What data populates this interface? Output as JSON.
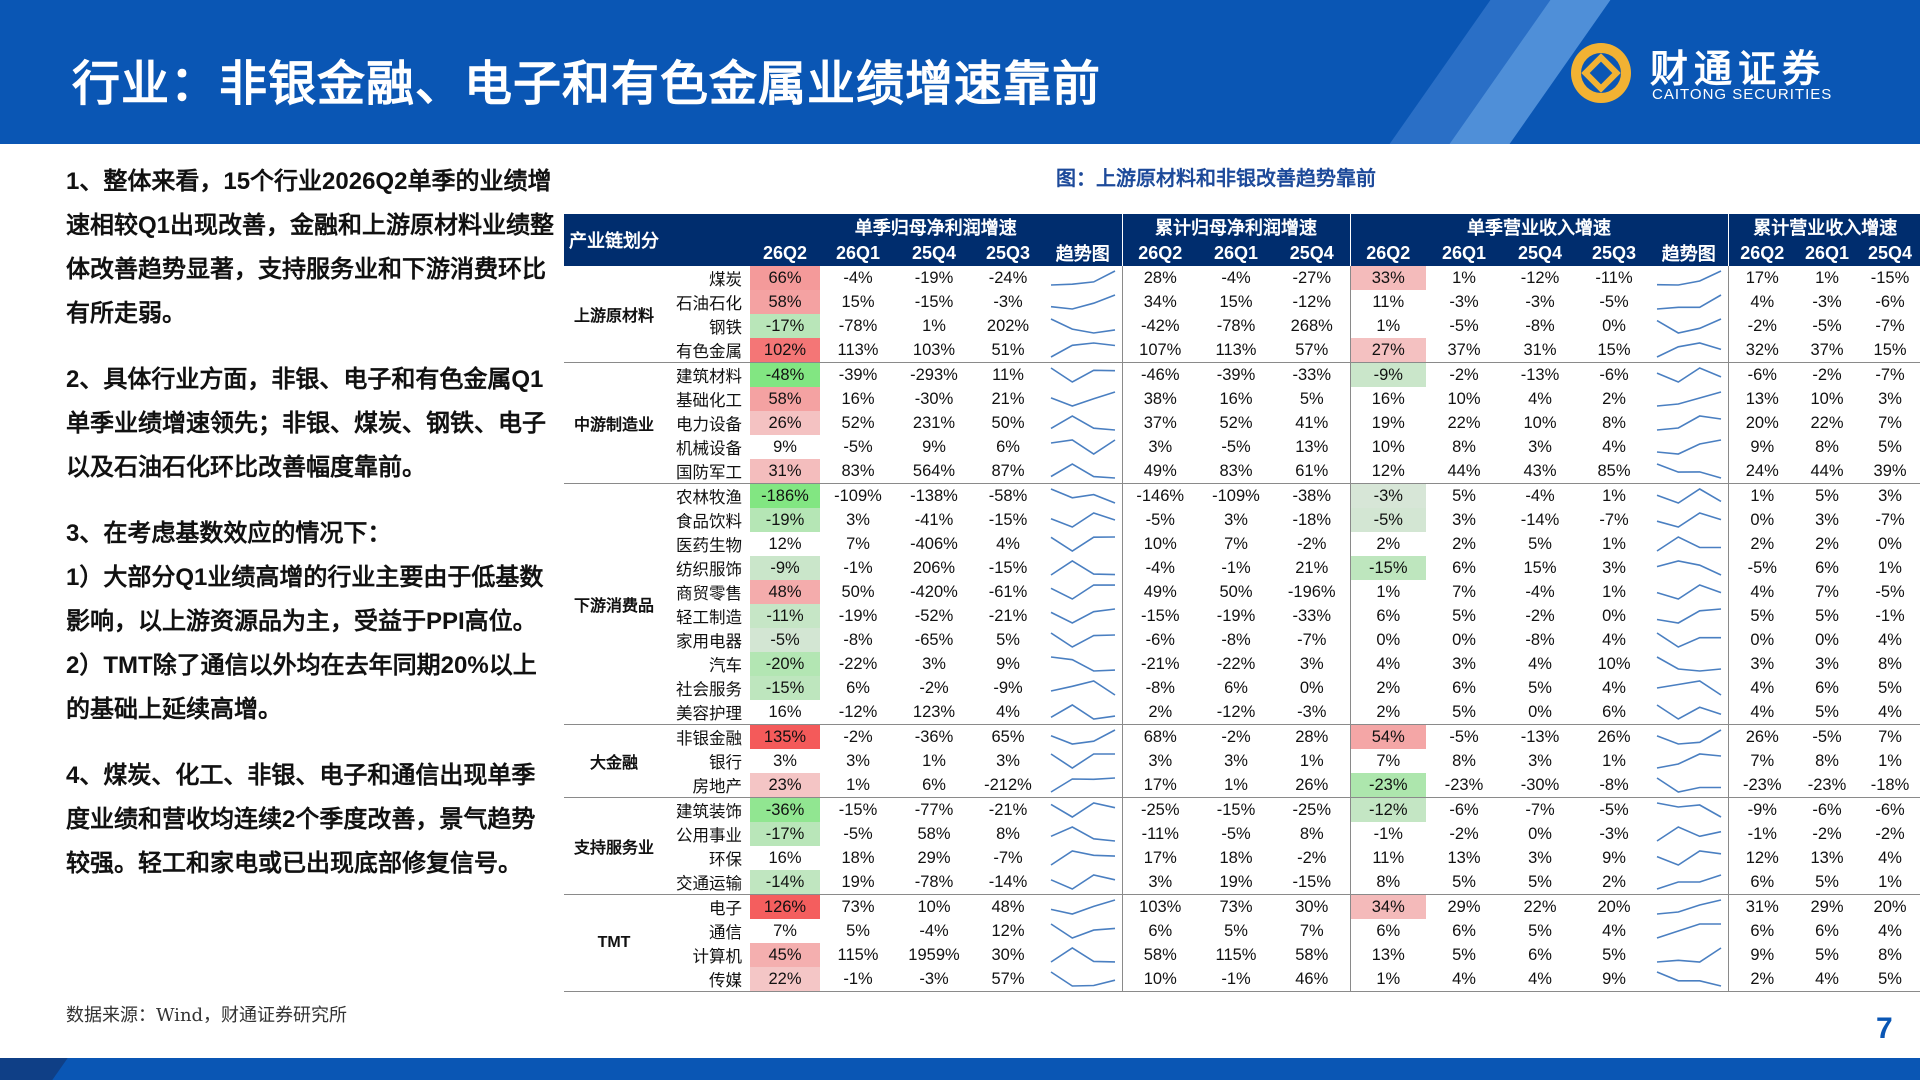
{
  "header": {
    "title": "行业：非银金融、电子和有色金属业绩增速靠前"
  },
  "brand": {
    "name_cn": "财通证券",
    "name_en": "CAITONG SECURITIES"
  },
  "colors": {
    "primary": "#0a56b4",
    "table_header": "#002d6e",
    "red_highlight": "#f4a3a3",
    "green_highlight": "#a9dca9"
  },
  "left_text": [
    "1、整体来看，15个行业2026Q2单季的业绩增速相较Q1出现改善，金融和上游原材料业绩整体改善趋势显著，支持服务业和下游消费环比有所走弱。",
    "2、具体行业方面，非银、电子和有色金属Q1单季业绩增速领先；非银、煤炭、钢铁、电子以及石油石化环比改善幅度靠前。",
    "3、在考虑基数效应的情况下：",
    "1）大部分Q1业绩高增的行业主要由于低基数影响，以上游资源品为主，受益于PPI高位。",
    "2）TMT除了通信以外均在去年同期20%以上的基础上延续高增。",
    "4、煤炭、化工、非银、电子和通信出现单季度业绩和营收均连续2个季度改善，景气趋势较强。轻工和家电或已出现底部修复信号。"
  ],
  "chart_title": "图：上游原材料和非银改善趋势靠前",
  "table": {
    "chain_header": "产业链划分",
    "group_headers": [
      "单季归母净利润增速",
      "累计归母净利润增速",
      "单季营业收入增速",
      "累计营业收入增速"
    ],
    "sub_headers": {
      "q_profit": [
        "26Q2",
        "26Q1",
        "25Q4",
        "25Q3",
        "趋势图"
      ],
      "c_profit": [
        "26Q2",
        "26Q1",
        "25Q4"
      ],
      "q_rev": [
        "26Q2",
        "26Q1",
        "25Q4",
        "25Q3",
        "趋势图"
      ],
      "c_rev": [
        "26Q2",
        "26Q1",
        "25Q4"
      ]
    },
    "groups": [
      {
        "name": "上游原材料",
        "rows": [
          {
            "industry": "煤炭",
            "qp": [
              "66%",
              "-4%",
              "-19%",
              "-24%"
            ],
            "cp": [
              "28%",
              "-4%",
              "-27%"
            ],
            "qr": [
              "33%",
              "1%",
              "-12%",
              "-11%"
            ],
            "cr": [
              "17%",
              "1%",
              "-15%"
            ]
          },
          {
            "industry": "石油石化",
            "qp": [
              "58%",
              "15%",
              "-15%",
              "-3%"
            ],
            "cp": [
              "34%",
              "15%",
              "-12%"
            ],
            "qr": [
              "11%",
              "-3%",
              "-3%",
              "-5%"
            ],
            "cr": [
              "4%",
              "-3%",
              "-6%"
            ]
          },
          {
            "industry": "钢铁",
            "qp": [
              "-17%",
              "-78%",
              "1%",
              "202%"
            ],
            "cp": [
              "-42%",
              "-78%",
              "268%"
            ],
            "qr": [
              "1%",
              "-5%",
              "-8%",
              "0%"
            ],
            "cr": [
              "-2%",
              "-5%",
              "-7%"
            ]
          },
          {
            "industry": "有色金属",
            "qp": [
              "102%",
              "113%",
              "103%",
              "51%"
            ],
            "cp": [
              "107%",
              "113%",
              "57%"
            ],
            "qr": [
              "27%",
              "37%",
              "31%",
              "15%"
            ],
            "cr": [
              "32%",
              "37%",
              "15%"
            ]
          }
        ]
      },
      {
        "name": "中游制造业",
        "rows": [
          {
            "industry": "建筑材料",
            "qp": [
              "-48%",
              "-39%",
              "-293%",
              "11%"
            ],
            "cp": [
              "-46%",
              "-39%",
              "-33%"
            ],
            "qr": [
              "-9%",
              "-2%",
              "-13%",
              "-6%"
            ],
            "cr": [
              "-6%",
              "-2%",
              "-7%"
            ]
          },
          {
            "industry": "基础化工",
            "qp": [
              "58%",
              "16%",
              "-30%",
              "21%"
            ],
            "cp": [
              "38%",
              "16%",
              "5%"
            ],
            "qr": [
              "16%",
              "10%",
              "4%",
              "2%"
            ],
            "cr": [
              "13%",
              "10%",
              "3%"
            ]
          },
          {
            "industry": "电力设备",
            "qp": [
              "26%",
              "52%",
              "231%",
              "50%"
            ],
            "cp": [
              "37%",
              "52%",
              "41%"
            ],
            "qr": [
              "19%",
              "22%",
              "10%",
              "8%"
            ],
            "cr": [
              "20%",
              "22%",
              "7%"
            ]
          },
          {
            "industry": "机械设备",
            "qp": [
              "9%",
              "-5%",
              "9%",
              "6%"
            ],
            "cp": [
              "3%",
              "-5%",
              "13%"
            ],
            "qr": [
              "10%",
              "8%",
              "3%",
              "4%"
            ],
            "cr": [
              "9%",
              "8%",
              "5%"
            ]
          },
          {
            "industry": "国防军工",
            "qp": [
              "31%",
              "83%",
              "564%",
              "87%"
            ],
            "cp": [
              "49%",
              "83%",
              "61%"
            ],
            "qr": [
              "12%",
              "44%",
              "43%",
              "85%"
            ],
            "cr": [
              "24%",
              "44%",
              "39%"
            ]
          }
        ]
      },
      {
        "name": "下游消费品",
        "rows": [
          {
            "industry": "农林牧渔",
            "qp": [
              "-186%",
              "-109%",
              "-138%",
              "-58%"
            ],
            "cp": [
              "-146%",
              "-109%",
              "-38%"
            ],
            "qr": [
              "-3%",
              "5%",
              "-4%",
              "1%"
            ],
            "cr": [
              "1%",
              "5%",
              "3%"
            ]
          },
          {
            "industry": "食品饮料",
            "qp": [
              "-19%",
              "3%",
              "-41%",
              "-15%"
            ],
            "cp": [
              "-5%",
              "3%",
              "-18%"
            ],
            "qr": [
              "-5%",
              "3%",
              "-14%",
              "-7%"
            ],
            "cr": [
              "0%",
              "3%",
              "-7%"
            ]
          },
          {
            "industry": "医药生物",
            "qp": [
              "12%",
              "7%",
              "-406%",
              "4%"
            ],
            "cp": [
              "10%",
              "7%",
              "-2%"
            ],
            "qr": [
              "2%",
              "2%",
              "5%",
              "1%"
            ],
            "cr": [
              "2%",
              "2%",
              "0%"
            ]
          },
          {
            "industry": "纺织服饰",
            "qp": [
              "-9%",
              "-1%",
              "206%",
              "-15%"
            ],
            "cp": [
              "-4%",
              "-1%",
              "21%"
            ],
            "qr": [
              "-15%",
              "6%",
              "15%",
              "3%"
            ],
            "cr": [
              "-5%",
              "6%",
              "1%"
            ]
          },
          {
            "industry": "商贸零售",
            "qp": [
              "48%",
              "50%",
              "-420%",
              "-61%"
            ],
            "cp": [
              "49%",
              "50%",
              "-196%"
            ],
            "qr": [
              "1%",
              "7%",
              "-4%",
              "1%"
            ],
            "cr": [
              "4%",
              "7%",
              "-5%"
            ]
          },
          {
            "industry": "轻工制造",
            "qp": [
              "-11%",
              "-19%",
              "-52%",
              "-21%"
            ],
            "cp": [
              "-15%",
              "-19%",
              "-33%"
            ],
            "qr": [
              "6%",
              "5%",
              "-2%",
              "0%"
            ],
            "cr": [
              "5%",
              "5%",
              "-1%"
            ]
          },
          {
            "industry": "家用电器",
            "qp": [
              "-5%",
              "-8%",
              "-65%",
              "5%"
            ],
            "cp": [
              "-6%",
              "-8%",
              "-7%"
            ],
            "qr": [
              "0%",
              "0%",
              "-8%",
              "4%"
            ],
            "cr": [
              "0%",
              "0%",
              "4%"
            ]
          },
          {
            "industry": "汽车",
            "qp": [
              "-20%",
              "-22%",
              "3%",
              "9%"
            ],
            "cp": [
              "-21%",
              "-22%",
              "3%"
            ],
            "qr": [
              "4%",
              "3%",
              "4%",
              "10%"
            ],
            "cr": [
              "3%",
              "3%",
              "8%"
            ]
          },
          {
            "industry": "社会服务",
            "qp": [
              "-15%",
              "6%",
              "-2%",
              "-9%"
            ],
            "cp": [
              "-8%",
              "6%",
              "0%"
            ],
            "qr": [
              "2%",
              "6%",
              "5%",
              "4%"
            ],
            "cr": [
              "4%",
              "6%",
              "5%"
            ]
          },
          {
            "industry": "美容护理",
            "qp": [
              "16%",
              "-12%",
              "123%",
              "4%"
            ],
            "cp": [
              "2%",
              "-12%",
              "-3%"
            ],
            "qr": [
              "2%",
              "5%",
              "0%",
              "6%"
            ],
            "cr": [
              "4%",
              "5%",
              "4%"
            ]
          }
        ]
      },
      {
        "name": "大金融",
        "rows": [
          {
            "industry": "非银金融",
            "qp": [
              "135%",
              "-2%",
              "-36%",
              "65%"
            ],
            "cp": [
              "68%",
              "-2%",
              "28%"
            ],
            "qr": [
              "54%",
              "-5%",
              "-13%",
              "26%"
            ],
            "cr": [
              "26%",
              "-5%",
              "7%"
            ]
          },
          {
            "industry": "银行",
            "qp": [
              "3%",
              "3%",
              "1%",
              "3%"
            ],
            "cp": [
              "3%",
              "3%",
              "1%"
            ],
            "qr": [
              "7%",
              "8%",
              "3%",
              "1%"
            ],
            "cr": [
              "7%",
              "8%",
              "1%"
            ]
          },
          {
            "industry": "房地产",
            "qp": [
              "23%",
              "1%",
              "6%",
              "-212%"
            ],
            "cp": [
              "17%",
              "1%",
              "26%"
            ],
            "qr": [
              "-23%",
              "-23%",
              "-30%",
              "-8%"
            ],
            "cr": [
              "-23%",
              "-23%",
              "-18%"
            ]
          }
        ]
      },
      {
        "name": "支持服务业",
        "rows": [
          {
            "industry": "建筑装饰",
            "qp": [
              "-36%",
              "-15%",
              "-77%",
              "-21%"
            ],
            "cp": [
              "-25%",
              "-15%",
              "-25%"
            ],
            "qr": [
              "-12%",
              "-6%",
              "-7%",
              "-5%"
            ],
            "cr": [
              "-9%",
              "-6%",
              "-6%"
            ]
          },
          {
            "industry": "公用事业",
            "qp": [
              "-17%",
              "-5%",
              "58%",
              "8%"
            ],
            "cp": [
              "-11%",
              "-5%",
              "8%"
            ],
            "qr": [
              "-1%",
              "-2%",
              "0%",
              "-3%"
            ],
            "cr": [
              "-1%",
              "-2%",
              "-2%"
            ]
          },
          {
            "industry": "环保",
            "qp": [
              "16%",
              "18%",
              "29%",
              "-7%"
            ],
            "cp": [
              "17%",
              "18%",
              "-2%"
            ],
            "qr": [
              "11%",
              "13%",
              "3%",
              "9%"
            ],
            "cr": [
              "12%",
              "13%",
              "4%"
            ]
          },
          {
            "industry": "交通运输",
            "qp": [
              "-14%",
              "19%",
              "-78%",
              "-14%"
            ],
            "cp": [
              "3%",
              "19%",
              "-15%"
            ],
            "qr": [
              "8%",
              "5%",
              "5%",
              "2%"
            ],
            "cr": [
              "6%",
              "5%",
              "1%"
            ]
          }
        ]
      },
      {
        "name": "TMT",
        "rows": [
          {
            "industry": "电子",
            "qp": [
              "126%",
              "73%",
              "10%",
              "48%"
            ],
            "cp": [
              "103%",
              "73%",
              "30%"
            ],
            "qr": [
              "34%",
              "29%",
              "22%",
              "20%"
            ],
            "cr": [
              "31%",
              "29%",
              "20%"
            ]
          },
          {
            "industry": "通信",
            "qp": [
              "7%",
              "5%",
              "-4%",
              "12%"
            ],
            "cp": [
              "6%",
              "5%",
              "7%"
            ],
            "qr": [
              "6%",
              "6%",
              "5%",
              "4%"
            ],
            "cr": [
              "6%",
              "6%",
              "4%"
            ]
          },
          {
            "industry": "计算机",
            "qp": [
              "45%",
              "115%",
              "1959%",
              "30%"
            ],
            "cp": [
              "58%",
              "115%",
              "58%"
            ],
            "qr": [
              "13%",
              "5%",
              "6%",
              "5%"
            ],
            "cr": [
              "9%",
              "5%",
              "8%"
            ]
          },
          {
            "industry": "传媒",
            "qp": [
              "22%",
              "-1%",
              "-3%",
              "57%"
            ],
            "cp": [
              "10%",
              "-1%",
              "46%"
            ],
            "qr": [
              "1%",
              "4%",
              "4%",
              "9%"
            ],
            "cr": [
              "2%",
              "4%",
              "5%"
            ]
          }
        ]
      }
    ]
  },
  "source": "数据来源：Wind，财通证券研究所",
  "page_number": "7"
}
